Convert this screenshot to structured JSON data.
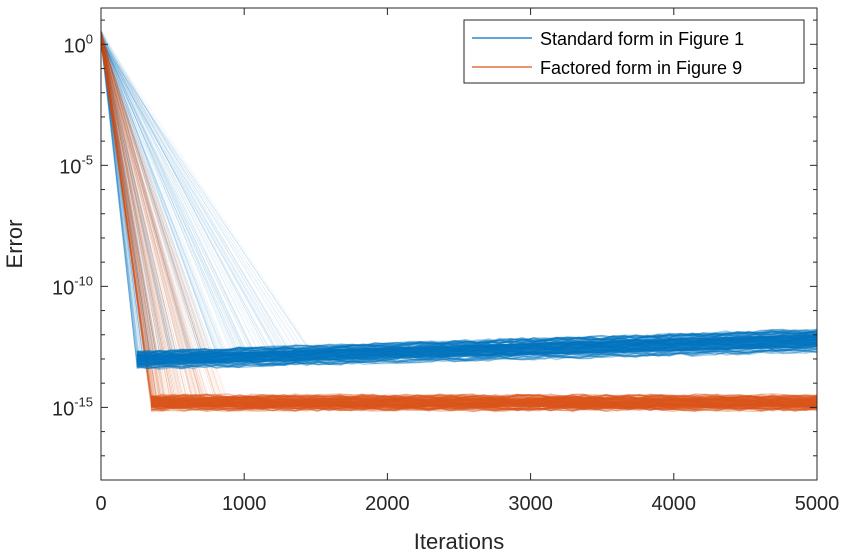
{
  "chart_data": {
    "type": "line",
    "title": "",
    "xlabel": "Iterations",
    "ylabel": "Error",
    "xlim": [
      0,
      5000
    ],
    "ylim_log10": [
      -18,
      1.5
    ],
    "yscale": "log",
    "grid": false,
    "legend_position": "top-right",
    "x_ticks": [
      "0",
      "1000",
      "2000",
      "3000",
      "4000",
      "5000"
    ],
    "y_ticks": [
      {
        "base": "10",
        "exp": "0",
        "log10": 0
      },
      {
        "base": "10",
        "exp": "-5",
        "log10": -5
      },
      {
        "base": "10",
        "exp": "-10",
        "log10": -10
      },
      {
        "base": "10",
        "exp": "-15",
        "log10": -15
      }
    ],
    "series": [
      {
        "name": "Standard form in Figure 1",
        "color": "#0072BD",
        "start_log10": 0.6,
        "converge_iteration_range": [
          250,
          1500
        ],
        "plateau_log10_at_start": [
          -13.4,
          -12.7
        ],
        "plateau_log10_at_end": [
          -12.7,
          -11.8
        ]
      },
      {
        "name": "Factored form in Figure 9",
        "color": "#D95319",
        "start_log10": 0.6,
        "converge_iteration_range": [
          350,
          900
        ],
        "plateau_log10_at_start": [
          -15.1,
          -14.5
        ],
        "plateau_log10_at_end": [
          -15.1,
          -14.5
        ]
      }
    ]
  }
}
